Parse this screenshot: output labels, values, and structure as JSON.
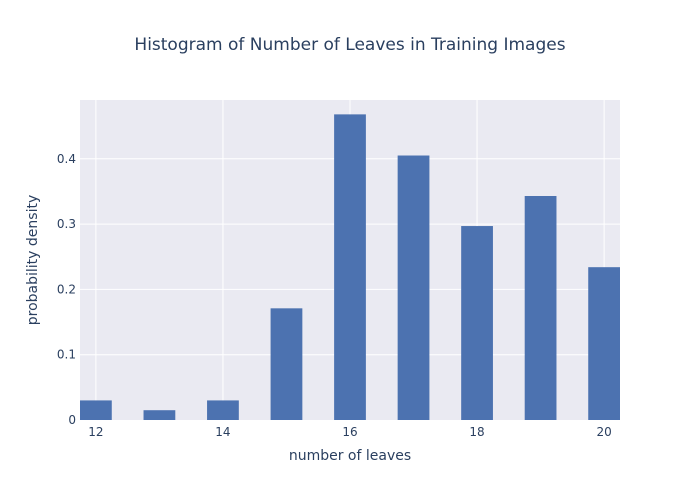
{
  "chart_data": {
    "type": "bar",
    "title": "Histogram of Number of Leaves in Training Images",
    "xlabel": "number of leaves",
    "ylabel": "probability density",
    "x": [
      12,
      13,
      14,
      15,
      16,
      17,
      18,
      19,
      20
    ],
    "values": [
      0.03,
      0.015,
      0.03,
      0.171,
      0.468,
      0.405,
      0.297,
      0.343,
      0.234
    ],
    "xlim": [
      11.75,
      20.25
    ],
    "ylim": [
      0,
      0.49
    ],
    "xticks": [
      12,
      14,
      16,
      18,
      20
    ],
    "xtick_labels": [
      "12",
      "14",
      "16",
      "18",
      "20"
    ],
    "yticks": [
      0,
      0.1,
      0.2,
      0.3,
      0.4
    ],
    "ytick_labels": [
      "0",
      "0.1",
      "0.2",
      "0.3",
      "0.4"
    ],
    "bar_color": "#4c72b0",
    "plot_bg_color": "#eaeaf2",
    "grid_color": "#ffffff",
    "grid": true
  }
}
